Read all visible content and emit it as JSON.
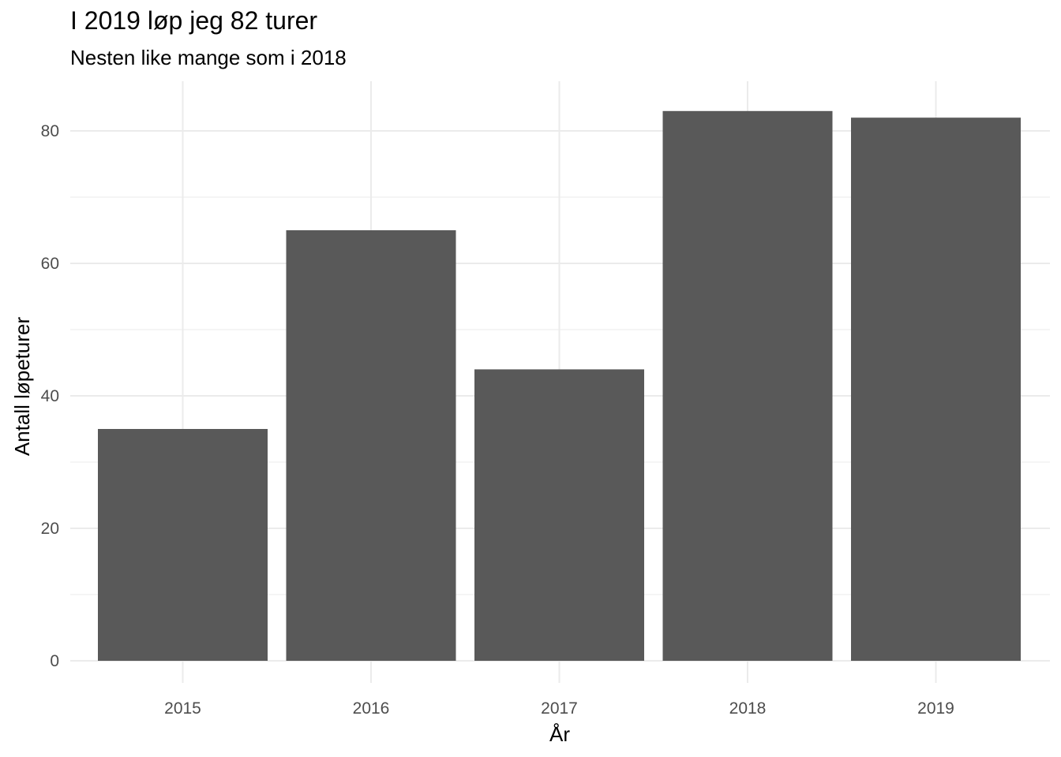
{
  "chart_data": {
    "type": "bar",
    "title": "I 2019 løp jeg 82 turer",
    "subtitle": "Nesten like mange som i 2018",
    "xlabel": "År",
    "ylabel": "Antall løpeturer",
    "categories": [
      "2015",
      "2016",
      "2017",
      "2018",
      "2019"
    ],
    "values": [
      35,
      65,
      44,
      83,
      82
    ],
    "ylim": [
      0,
      87.4
    ],
    "yticks": [
      0,
      20,
      40,
      60,
      80
    ],
    "grid": true,
    "legend": "none",
    "colors": {
      "bar": "#595959",
      "grid": "#ebebeb",
      "tick_text": "#4d4d4d",
      "background": "#ffffff"
    }
  }
}
